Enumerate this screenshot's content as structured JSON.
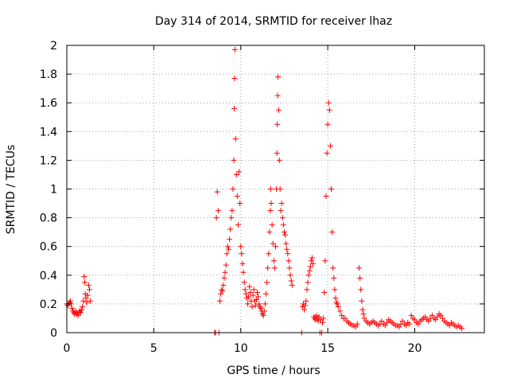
{
  "chart_data": {
    "type": "scatter",
    "title": "Day 314 of 2014, SRMTID for receiver lhaz",
    "xlabel": "GPS time / hours",
    "ylabel": "SRMTID / TECUs",
    "xlim": [
      0,
      24
    ],
    "ylim": [
      0,
      2
    ],
    "xticks": [
      0,
      5,
      10,
      15,
      20
    ],
    "xtick_labels": [
      "0",
      "5",
      "10",
      "15",
      "20"
    ],
    "yticks": [
      0,
      0.2,
      0.4,
      0.6,
      0.8,
      1,
      1.2,
      1.4,
      1.6,
      1.8,
      2
    ],
    "ytick_labels": [
      "0",
      "0.2",
      "0.4",
      "0.6",
      "0.8",
      "1",
      "1.2",
      "1.4",
      "1.6",
      "1.8",
      "2"
    ],
    "grid": true,
    "marker": "+",
    "series_color": "#ff0000",
    "points": [
      [
        0.0,
        0.2
      ],
      [
        0.05,
        0.19
      ],
      [
        0.1,
        0.2
      ],
      [
        0.15,
        0.21
      ],
      [
        0.2,
        0.22
      ],
      [
        0.25,
        0.2
      ],
      [
        0.3,
        0.17
      ],
      [
        0.35,
        0.15
      ],
      [
        0.4,
        0.14
      ],
      [
        0.45,
        0.13
      ],
      [
        0.5,
        0.15
      ],
      [
        0.55,
        0.13
      ],
      [
        0.6,
        0.14
      ],
      [
        0.65,
        0.12
      ],
      [
        0.7,
        0.14
      ],
      [
        0.75,
        0.15
      ],
      [
        0.8,
        0.14
      ],
      [
        0.85,
        0.16
      ],
      [
        0.9,
        0.18
      ],
      [
        0.95,
        0.22
      ],
      [
        1.0,
        0.39
      ],
      [
        1.03,
        0.35
      ],
      [
        1.06,
        0.27
      ],
      [
        1.1,
        0.24
      ],
      [
        1.15,
        0.21
      ],
      [
        1.2,
        0.26
      ],
      [
        1.25,
        0.33
      ],
      [
        1.3,
        0.3
      ],
      [
        1.35,
        0.22
      ],
      [
        8.5,
        0.0
      ],
      [
        8.55,
        0.0
      ],
      [
        8.6,
        0.8
      ],
      [
        8.65,
        0.98
      ],
      [
        8.7,
        0.85
      ],
      [
        8.75,
        0.0
      ],
      [
        8.8,
        0.22
      ],
      [
        8.85,
        0.27
      ],
      [
        8.9,
        0.3
      ],
      [
        8.95,
        0.29
      ],
      [
        9.0,
        0.33
      ],
      [
        9.05,
        0.38
      ],
      [
        9.1,
        0.42
      ],
      [
        9.15,
        0.47
      ],
      [
        9.2,
        0.55
      ],
      [
        9.25,
        0.6
      ],
      [
        9.3,
        0.58
      ],
      [
        9.35,
        0.65
      ],
      [
        9.4,
        0.72
      ],
      [
        9.45,
        0.8
      ],
      [
        9.5,
        0.85
      ],
      [
        9.55,
        1.0
      ],
      [
        9.6,
        1.2
      ],
      [
        9.62,
        1.56
      ],
      [
        9.64,
        1.77
      ],
      [
        9.66,
        1.97
      ],
      [
        9.7,
        1.35
      ],
      [
        9.75,
        1.1
      ],
      [
        9.8,
        0.95
      ],
      [
        9.85,
        0.75
      ],
      [
        9.9,
        1.12
      ],
      [
        9.95,
        0.9
      ],
      [
        10.0,
        0.6
      ],
      [
        10.05,
        0.55
      ],
      [
        10.1,
        0.48
      ],
      [
        10.15,
        0.42
      ],
      [
        10.2,
        0.35
      ],
      [
        10.25,
        0.3
      ],
      [
        10.3,
        0.27
      ],
      [
        10.35,
        0.24
      ],
      [
        10.4,
        0.2
      ],
      [
        10.45,
        0.25
      ],
      [
        10.5,
        0.32
      ],
      [
        10.55,
        0.28
      ],
      [
        10.6,
        0.22
      ],
      [
        10.65,
        0.18
      ],
      [
        10.7,
        0.26
      ],
      [
        10.75,
        0.3
      ],
      [
        10.8,
        0.22
      ],
      [
        10.85,
        0.19
      ],
      [
        10.9,
        0.23
      ],
      [
        10.95,
        0.28
      ],
      [
        11.0,
        0.25
      ],
      [
        11.05,
        0.2
      ],
      [
        11.1,
        0.18
      ],
      [
        11.15,
        0.17
      ],
      [
        11.2,
        0.15
      ],
      [
        11.25,
        0.13
      ],
      [
        11.3,
        0.12
      ],
      [
        11.35,
        0.15
      ],
      [
        11.4,
        0.2
      ],
      [
        11.45,
        0.27
      ],
      [
        11.5,
        0.35
      ],
      [
        11.55,
        0.45
      ],
      [
        11.6,
        0.55
      ],
      [
        11.65,
        0.7
      ],
      [
        11.7,
        0.85
      ],
      [
        11.72,
        1.0
      ],
      [
        11.75,
        0.9
      ],
      [
        11.8,
        0.75
      ],
      [
        11.85,
        0.62
      ],
      [
        11.9,
        0.5
      ],
      [
        11.95,
        0.45
      ],
      [
        12.0,
        0.6
      ],
      [
        12.05,
        1.0
      ],
      [
        12.08,
        1.25
      ],
      [
        12.1,
        1.45
      ],
      [
        12.12,
        1.65
      ],
      [
        12.14,
        1.78
      ],
      [
        12.18,
        1.55
      ],
      [
        12.22,
        1.2
      ],
      [
        12.26,
        1.0
      ],
      [
        12.3,
        0.85
      ],
      [
        12.35,
        0.9
      ],
      [
        12.4,
        0.8
      ],
      [
        12.45,
        0.75
      ],
      [
        12.5,
        0.7
      ],
      [
        12.55,
        0.68
      ],
      [
        12.6,
        0.62
      ],
      [
        12.65,
        0.58
      ],
      [
        12.7,
        0.55
      ],
      [
        12.75,
        0.5
      ],
      [
        12.8,
        0.45
      ],
      [
        12.85,
        0.4
      ],
      [
        12.9,
        0.36
      ],
      [
        12.95,
        0.33
      ],
      [
        13.5,
        0.0
      ],
      [
        13.55,
        0.18
      ],
      [
        13.6,
        0.2
      ],
      [
        13.65,
        0.16
      ],
      [
        13.7,
        0.19
      ],
      [
        13.75,
        0.22
      ],
      [
        13.8,
        0.3
      ],
      [
        13.85,
        0.35
      ],
      [
        13.9,
        0.4
      ],
      [
        13.95,
        0.43
      ],
      [
        14.0,
        0.46
      ],
      [
        14.05,
        0.5
      ],
      [
        14.1,
        0.52
      ],
      [
        14.15,
        0.48
      ],
      [
        14.2,
        0.11
      ],
      [
        14.25,
        0.1
      ],
      [
        14.3,
        0.09
      ],
      [
        14.35,
        0.12
      ],
      [
        14.4,
        0.1
      ],
      [
        14.45,
        0.08
      ],
      [
        14.5,
        0.11
      ],
      [
        14.55,
        0.0
      ],
      [
        14.6,
        0.09
      ],
      [
        14.65,
        0.0
      ],
      [
        14.7,
        0.07
      ],
      [
        14.75,
        0.1
      ],
      [
        14.8,
        0.28
      ],
      [
        14.85,
        0.5
      ],
      [
        14.9,
        0.95
      ],
      [
        14.95,
        1.25
      ],
      [
        15.0,
        1.45
      ],
      [
        15.05,
        1.6
      ],
      [
        15.1,
        1.55
      ],
      [
        15.15,
        1.3
      ],
      [
        15.2,
        1.0
      ],
      [
        15.25,
        0.7
      ],
      [
        15.3,
        0.45
      ],
      [
        15.35,
        0.38
      ],
      [
        15.4,
        0.3
      ],
      [
        15.45,
        0.24
      ],
      [
        15.5,
        0.21
      ],
      [
        15.55,
        0.2
      ],
      [
        15.6,
        0.18
      ],
      [
        15.7,
        0.15
      ],
      [
        15.8,
        0.12
      ],
      [
        15.9,
        0.1
      ],
      [
        16.0,
        0.1
      ],
      [
        16.1,
        0.08
      ],
      [
        16.2,
        0.07
      ],
      [
        16.3,
        0.06
      ],
      [
        16.4,
        0.05
      ],
      [
        16.5,
        0.05
      ],
      [
        16.6,
        0.04
      ],
      [
        16.7,
        0.06
      ],
      [
        16.8,
        0.45
      ],
      [
        16.85,
        0.38
      ],
      [
        16.9,
        0.3
      ],
      [
        16.95,
        0.22
      ],
      [
        17.0,
        0.16
      ],
      [
        17.05,
        0.13
      ],
      [
        17.1,
        0.1
      ],
      [
        17.2,
        0.08
      ],
      [
        17.3,
        0.07
      ],
      [
        17.4,
        0.06
      ],
      [
        17.5,
        0.07
      ],
      [
        17.6,
        0.08
      ],
      [
        17.7,
        0.07
      ],
      [
        17.8,
        0.06
      ],
      [
        17.9,
        0.05
      ],
      [
        18.0,
        0.06
      ],
      [
        18.1,
        0.08
      ],
      [
        18.2,
        0.06
      ],
      [
        18.3,
        0.05
      ],
      [
        18.4,
        0.07
      ],
      [
        18.5,
        0.09
      ],
      [
        18.6,
        0.08
      ],
      [
        18.7,
        0.07
      ],
      [
        18.8,
        0.06
      ],
      [
        18.9,
        0.05
      ],
      [
        19.0,
        0.05
      ],
      [
        19.1,
        0.04
      ],
      [
        19.2,
        0.06
      ],
      [
        19.3,
        0.08
      ],
      [
        19.4,
        0.06
      ],
      [
        19.5,
        0.05
      ],
      [
        19.6,
        0.07
      ],
      [
        19.7,
        0.06
      ],
      [
        19.8,
        0.12
      ],
      [
        19.9,
        0.1
      ],
      [
        20.0,
        0.09
      ],
      [
        20.1,
        0.07
      ],
      [
        20.2,
        0.06
      ],
      [
        20.3,
        0.08
      ],
      [
        20.4,
        0.09
      ],
      [
        20.5,
        0.1
      ],
      [
        20.6,
        0.11
      ],
      [
        20.7,
        0.09
      ],
      [
        20.8,
        0.08
      ],
      [
        20.9,
        0.1
      ],
      [
        21.0,
        0.12
      ],
      [
        21.1,
        0.1
      ],
      [
        21.2,
        0.09
      ],
      [
        21.3,
        0.11
      ],
      [
        21.4,
        0.13
      ],
      [
        21.5,
        0.12
      ],
      [
        21.6,
        0.1
      ],
      [
        21.7,
        0.08
      ],
      [
        21.8,
        0.07
      ],
      [
        21.9,
        0.06
      ],
      [
        22.0,
        0.05
      ],
      [
        22.1,
        0.07
      ],
      [
        22.2,
        0.06
      ],
      [
        22.3,
        0.05
      ],
      [
        22.4,
        0.04
      ],
      [
        22.5,
        0.05
      ],
      [
        22.6,
        0.04
      ],
      [
        22.7,
        0.03
      ]
    ]
  }
}
